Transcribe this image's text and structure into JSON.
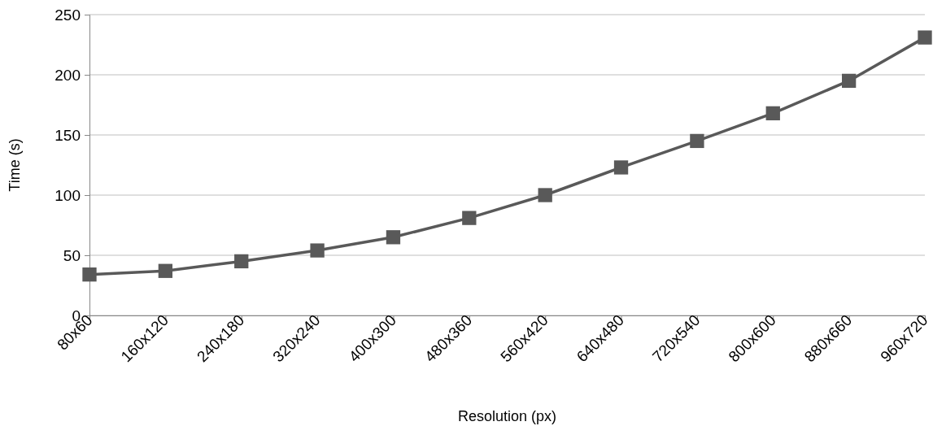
{
  "chart_data": {
    "type": "line",
    "xlabel": "Resolution (px)",
    "ylabel": "Time (s)",
    "categories": [
      "80x60",
      "160x120",
      "240x180",
      "320x240",
      "400x300",
      "480x360",
      "560x420",
      "640x480",
      "720x540",
      "800x600",
      "880x660",
      "960x720"
    ],
    "series": [
      {
        "color": "#595959",
        "values": [
          34,
          37,
          45,
          54,
          65,
          81,
          100,
          123,
          145,
          168,
          195,
          231
        ]
      }
    ],
    "ylim": [
      0,
      250
    ],
    "yticks": [
      0,
      50,
      100,
      150,
      200,
      250
    ],
    "grid": "y",
    "marker": "square",
    "line_style": "solid"
  }
}
